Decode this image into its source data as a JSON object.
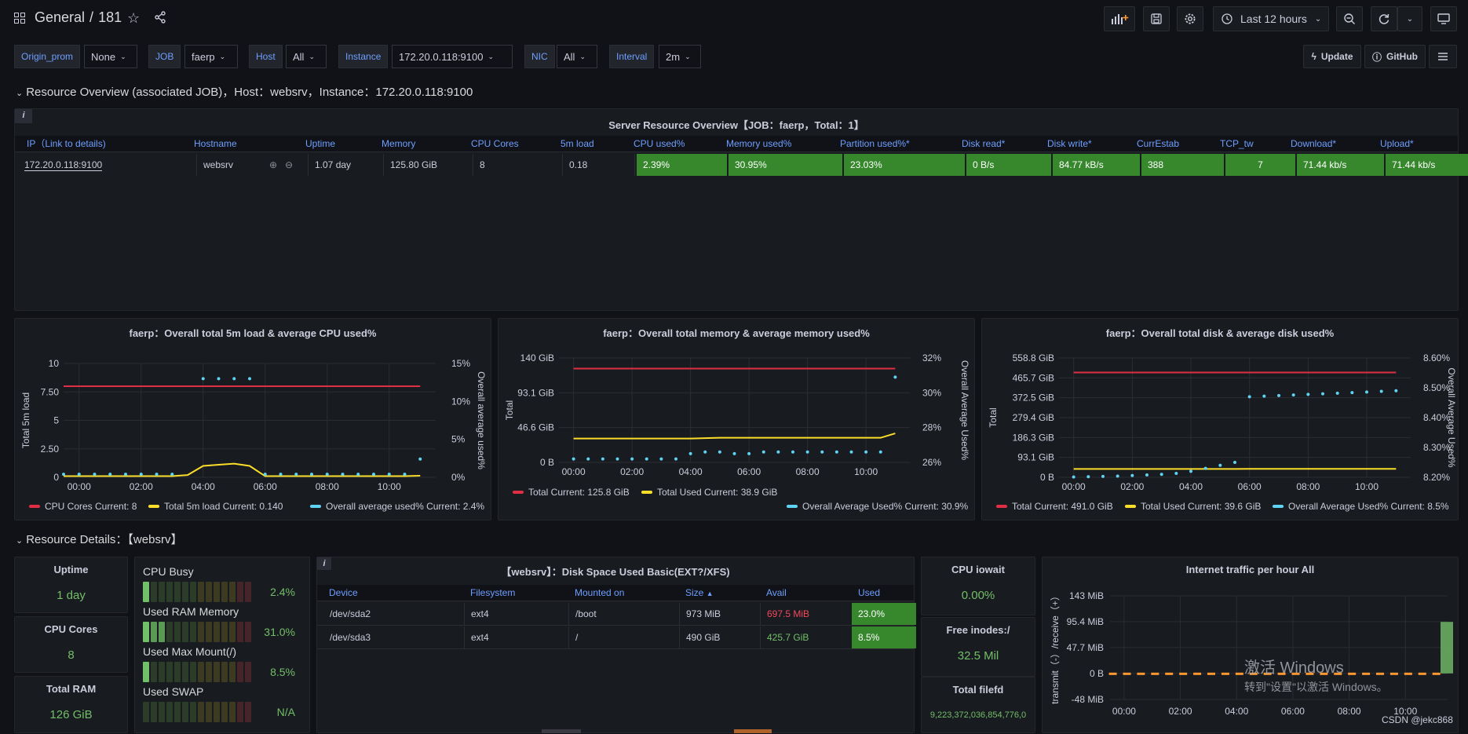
{
  "topbar": {
    "breadcrumb_folder": "General",
    "breadcrumb_sep": "/",
    "breadcrumb_dash": "181",
    "time_range": "Last 12 hours"
  },
  "variables": [
    {
      "label": "Origin_prom",
      "value": "None"
    },
    {
      "label": "JOB",
      "value": "faerp"
    },
    {
      "label": "Host",
      "value": "All"
    },
    {
      "label": "Instance",
      "value": "172.20.0.118:9100"
    },
    {
      "label": "NIC",
      "value": "All"
    },
    {
      "label": "Interval",
      "value": "2m"
    }
  ],
  "links": {
    "update": "Update",
    "github": "GitHub"
  },
  "row1_title": "Resource Overview (associated JOB)，Host：websrv，Instance：172.20.0.118:9100",
  "overview_table": {
    "title": "Server Resource Overview【JOB：faerp，Total：1】",
    "info": "i",
    "headers": [
      "IP（Link to details)",
      "Hostname",
      "Uptime",
      "Memory",
      "CPU Cores",
      "5m load",
      "CPU used%",
      "Memory used%",
      "Partition used%*",
      "Disk read*",
      "Disk write*",
      "CurrEstab",
      "TCP_tw",
      "Download*",
      "Upload*"
    ],
    "row": [
      "172.20.0.118:9100",
      "websrv",
      "1.07 day",
      "125.80 GiB",
      "8",
      "0.18",
      "2.39%",
      "30.95%",
      "23.03%",
      "0 B/s",
      "84.77 kB/s",
      "388",
      "7",
      "71.44 kb/s",
      "71.44 kb/s"
    ]
  },
  "colors": {
    "red": "#e02f44",
    "yellow": "#fade2a",
    "cyan": "#5fd3f3",
    "green": "#37872d",
    "stat_green": "#73bf69",
    "orange": "#ff9830"
  },
  "chart_data": [
    {
      "type": "line",
      "title": "faerp：Overall total 5m load & average CPU used%",
      "ylabel": "Total 5m load",
      "ylabel_right": "Overall average used%",
      "x_ticks": [
        "00:00",
        "02:00",
        "04:00",
        "06:00",
        "08:00",
        "10:00"
      ],
      "y_ticks": [
        "0",
        "2.50",
        "5",
        "7.50",
        "10"
      ],
      "y_right_ticks": [
        "0%",
        "5%",
        "10%",
        "15%"
      ],
      "ylim": [
        0,
        10
      ],
      "ylim_right": [
        0,
        15
      ],
      "x": [
        -0.5,
        0,
        0.5,
        1,
        1.5,
        2,
        2.5,
        3,
        3.5,
        4,
        4.5,
        5,
        5.5,
        6,
        6.5,
        7,
        7.5,
        8,
        8.5,
        9,
        9.5,
        10,
        10.5,
        11
      ],
      "series": [
        {
          "name": "CPU Cores",
          "values": [
            8,
            8,
            8,
            8,
            8,
            8,
            8,
            8,
            8,
            8,
            8,
            8,
            8,
            8,
            8,
            8,
            8,
            8,
            8,
            8,
            8,
            8,
            8,
            8
          ]
        },
        {
          "name": "Total 5m load",
          "values": [
            0.1,
            0.1,
            0.1,
            0.1,
            0.1,
            0.1,
            0.1,
            0.1,
            0.2,
            1.0,
            1.1,
            1.2,
            1.0,
            0.1,
            0.1,
            0.1,
            0.1,
            0.1,
            0.1,
            0.1,
            0.1,
            0.1,
            0.1,
            0.14
          ]
        },
        {
          "name": "Overall average used%",
          "values": [
            0.4,
            0.4,
            0.4,
            0.4,
            0.4,
            0.4,
            0.4,
            0.4,
            null,
            13,
            13,
            13,
            13,
            0.4,
            0.4,
            0.4,
            0.4,
            0.4,
            0.4,
            0.4,
            0.4,
            0.4,
            0.4,
            2.4
          ]
        }
      ],
      "legend": [
        "CPU Cores  Current: 8",
        "Total 5m load  Current: 0.140",
        "Overall average used%  Current: 2.4%"
      ]
    },
    {
      "type": "line",
      "title": "faerp：Overall total memory & average memory used%",
      "ylabel": "Total",
      "ylabel_right": "Overall Average Used%",
      "x_ticks": [
        "00:00",
        "02:00",
        "04:00",
        "06:00",
        "08:00",
        "10:00"
      ],
      "y_ticks": [
        "0 B",
        "46.6 GiB",
        "93.1 GiB",
        "140 GiB"
      ],
      "y_right_ticks": [
        "26%",
        "28%",
        "30%",
        "32%"
      ],
      "ylim": [
        0,
        140
      ],
      "ylim_right": [
        26,
        32
      ],
      "x": [
        0,
        0.5,
        1,
        1.5,
        2,
        2.5,
        3,
        3.5,
        4,
        4.5,
        5,
        5.5,
        6,
        6.5,
        7,
        7.5,
        8,
        8.5,
        9,
        9.5,
        10,
        10.5,
        11
      ],
      "series": [
        {
          "name": "Total",
          "values": [
            125.8,
            125.8,
            125.8,
            125.8,
            125.8,
            125.8,
            125.8,
            125.8,
            125.8,
            125.8,
            125.8,
            125.8,
            125.8,
            125.8,
            125.8,
            125.8,
            125.8,
            125.8,
            125.8,
            125.8,
            125.8,
            125.8,
            125.8
          ]
        },
        {
          "name": "Total Used",
          "values": [
            32,
            32,
            32,
            32,
            32,
            32,
            32,
            32,
            32,
            32.5,
            33,
            33,
            33,
            33,
            33,
            33,
            33,
            33,
            33,
            33,
            33,
            33,
            38.9
          ]
        },
        {
          "name": "Overall Average Used%",
          "values": [
            26.2,
            26.2,
            26.2,
            26.2,
            26.2,
            26.2,
            26.2,
            26.2,
            26.5,
            26.6,
            26.6,
            26.5,
            26.5,
            26.6,
            26.6,
            26.6,
            26.6,
            26.6,
            26.6,
            26.6,
            26.6,
            26.6,
            30.9
          ]
        }
      ],
      "legend": [
        "Total  Current: 125.8 GiB",
        "Total Used  Current: 38.9 GiB",
        "Overall Average Used%  Current: 30.9%"
      ]
    },
    {
      "type": "line",
      "title": "faerp：Overall total disk & average disk used%",
      "ylabel": "Total",
      "ylabel_right": "Overall Average Used%",
      "x_ticks": [
        "00:00",
        "02:00",
        "04:00",
        "06:00",
        "08:00",
        "10:00"
      ],
      "y_ticks": [
        "0 B",
        "93.1 GiB",
        "186.3 GiB",
        "279.4 GiB",
        "372.5 GiB",
        "465.7 GiB",
        "558.8 GiB"
      ],
      "y_right_ticks": [
        "8.20%",
        "8.30%",
        "8.40%",
        "8.50%",
        "8.60%"
      ],
      "ylim": [
        0,
        558.8
      ],
      "ylim_right": [
        8.2,
        8.6
      ],
      "x": [
        0,
        0.5,
        1,
        1.5,
        2,
        2.5,
        3,
        3.5,
        4,
        4.5,
        5,
        5.5,
        6,
        6.5,
        7,
        7.5,
        8,
        8.5,
        9,
        9.5,
        10,
        10.5,
        11
      ],
      "series": [
        {
          "name": "Total",
          "values": [
            491,
            491,
            491,
            491,
            491,
            491,
            491,
            491,
            491,
            491,
            491,
            491,
            491,
            491,
            491,
            491,
            491,
            491,
            491,
            491,
            491,
            491,
            491
          ]
        },
        {
          "name": "Total Used",
          "values": [
            39,
            39,
            39,
            39,
            39,
            39,
            39,
            39,
            39,
            39,
            39,
            39,
            39.6,
            39.6,
            39.6,
            39.6,
            39.6,
            39.6,
            39.6,
            39.6,
            39.6,
            39.6,
            39.6
          ]
        },
        {
          "name": "Overall Average Used%",
          "values": [
            8.201,
            8.202,
            8.203,
            8.204,
            8.206,
            8.208,
            8.21,
            8.213,
            8.22,
            8.23,
            8.24,
            8.25,
            8.47,
            8.472,
            8.474,
            8.476,
            8.478,
            8.48,
            8.482,
            8.484,
            8.486,
            8.488,
            8.49
          ]
        }
      ],
      "legend": [
        "Total  Current: 491.0 GiB",
        "Total Used  Current: 39.6 GiB",
        "Overall Average Used%  Current: 8.5%"
      ]
    },
    {
      "type": "bar",
      "title": "Internet traffic per hour All",
      "ylabel": "transmit（-）/receive（+）",
      "x_ticks": [
        "00:00",
        "02:00",
        "04:00",
        "06:00",
        "08:00",
        "10:00"
      ],
      "y_ticks": [
        "-48 MiB",
        "0 B",
        "47.7 MiB",
        "95.4 MiB",
        "143 MiB"
      ],
      "ylim": [
        -48,
        143
      ],
      "receive_last_hour": 95
    }
  ],
  "row2_title": "Resource Details：【websrv】",
  "stats": {
    "uptime": {
      "title": "Uptime",
      "value": "1 day"
    },
    "cpu_cores": {
      "title": "CPU Cores",
      "value": "8"
    },
    "total_ram": {
      "title": "Total RAM",
      "value": "126 GiB"
    },
    "cpu_iowait": {
      "title": "CPU iowait",
      "value": "0.00%"
    },
    "free_inodes": {
      "title": "Free inodes:/",
      "value": "32.5 Mil"
    },
    "total_filefd": {
      "title": "Total filefd",
      "value": "9,223,372,036,854,776,0"
    }
  },
  "bar_gauge": [
    {
      "label": "CPU Busy",
      "value": "2.4%",
      "level": 0.024
    },
    {
      "label": "Used RAM Memory",
      "value": "31.0%",
      "level": 0.31
    },
    {
      "label": "Used Max Mount(/)",
      "value": "8.5%",
      "level": 0.085
    },
    {
      "label": "Used SWAP",
      "value": "N/A",
      "level": 0
    }
  ],
  "disk_table": {
    "title": "【websrv】：Disk Space Used Basic(EXT?/XFS)",
    "info": "i",
    "headers": [
      "Device",
      "Filesystem",
      "Mounted on",
      "Size",
      "Avail",
      "Used"
    ],
    "rows": [
      [
        "/dev/sda2",
        "ext4",
        "/boot",
        "973 MiB",
        "697.5 MiB",
        "23.0%"
      ],
      [
        "/dev/sda3",
        "ext4",
        "/",
        "490 GiB",
        "425.7 GiB",
        "8.5%"
      ]
    ]
  },
  "watermark": {
    "line1": "激活 Windows",
    "line2": "转到\"设置\"以激活 Windows。"
  },
  "credit": "CSDN @jekc868"
}
